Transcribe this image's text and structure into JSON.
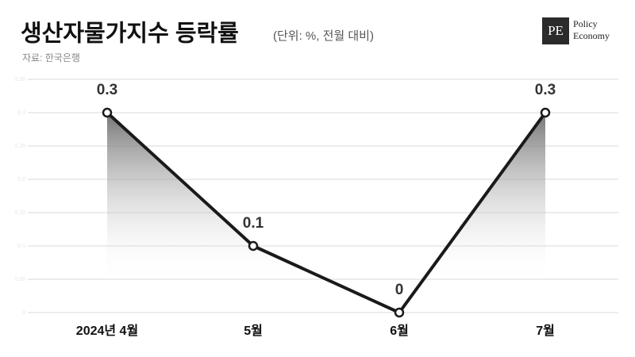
{
  "chart_data": {
    "type": "line",
    "title": "생산자물가지수 등락률",
    "subtitle": "(단위: %, 전월 대비)",
    "source": "자료: 한국은행",
    "logo": {
      "mark": "PE",
      "line1": "Policy",
      "line2": "Economy"
    },
    "categories": [
      "2024년 4월",
      "5월",
      "6월",
      "7월"
    ],
    "series": [
      {
        "name": "생산자물가지수 등락률",
        "color": "#1a1a1a",
        "values": [
          0.3,
          0.1,
          0,
          0.3
        ]
      }
    ],
    "ylim": [
      0,
      0.35
    ],
    "yticks": [
      0,
      0.05,
      0.1,
      0.15,
      0.2,
      0.25,
      0.3,
      0.35
    ],
    "grid": true
  }
}
